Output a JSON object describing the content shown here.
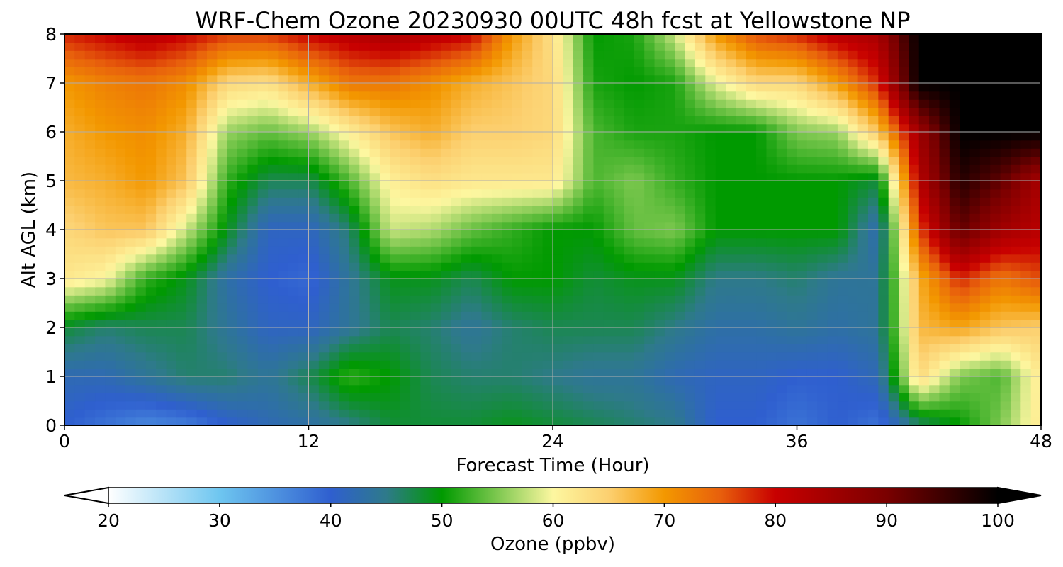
{
  "chart_data": {
    "type": "heatmap",
    "title": "WRF-Chem Ozone  20230930 00UTC 48h fcst at Yellowstone NP",
    "xlabel": "Forecast Time (Hour)",
    "ylabel": "Alt AGL (km)",
    "xlim": [
      0,
      48
    ],
    "ylim": [
      0,
      8
    ],
    "x_ticks": [
      0,
      12,
      24,
      36,
      48
    ],
    "x_tick_labels": [
      "0",
      "12",
      "24",
      "36",
      "48"
    ],
    "y_ticks": [
      0,
      1,
      2,
      3,
      4,
      5,
      6,
      7,
      8
    ],
    "y_tick_labels": [
      "0",
      "1",
      "2",
      "3",
      "4",
      "5",
      "6",
      "7",
      "8"
    ],
    "grid": true,
    "grid_x": [
      0,
      12,
      24,
      36,
      48
    ],
    "grid_y": [
      0,
      1,
      2,
      3,
      4,
      5,
      6,
      7,
      8
    ],
    "x": [
      0,
      2,
      4,
      6,
      8,
      10,
      12,
      14,
      16,
      18,
      20,
      22,
      24,
      26,
      28,
      30,
      32,
      34,
      36,
      38,
      40,
      42,
      44,
      46,
      48
    ],
    "y": [
      0,
      1,
      2,
      3,
      4,
      5,
      6,
      7,
      8
    ],
    "values": [
      [
        40,
        38,
        36,
        37,
        40,
        42,
        43,
        45,
        48,
        48,
        48,
        49,
        48,
        47,
        46,
        45,
        40,
        40,
        38,
        40,
        38,
        46,
        50,
        55,
        62
      ],
      [
        42,
        42,
        44,
        46,
        46,
        44,
        47,
        52,
        50,
        47,
        46,
        46,
        45,
        44,
        44,
        42,
        41,
        41,
        40,
        40,
        42,
        64,
        55,
        53,
        62
      ],
      [
        48,
        46,
        47,
        47,
        44,
        41,
        41,
        44,
        47,
        46,
        44,
        46,
        47,
        47,
        47,
        45,
        43,
        43,
        44,
        43,
        44,
        67,
        69,
        66,
        65
      ],
      [
        62,
        60,
        52,
        49,
        43,
        40,
        39,
        44,
        49,
        49,
        47,
        50,
        50,
        48,
        49,
        49,
        45,
        45,
        46,
        44,
        44,
        68,
        78,
        73,
        76
      ],
      [
        64,
        66,
        66,
        58,
        49,
        41,
        41,
        46,
        58,
        57,
        54,
        52,
        50,
        50,
        54,
        55,
        50,
        50,
        50,
        50,
        42,
        76,
        92,
        85,
        82
      ],
      [
        67,
        68,
        70,
        66,
        52,
        47,
        47,
        53,
        61,
        63,
        62,
        62,
        62,
        53,
        55,
        52,
        50,
        50,
        50,
        50,
        48,
        82,
        97,
        92,
        84
      ],
      [
        68,
        70,
        71,
        68,
        56,
        54,
        56,
        61,
        66,
        68,
        65,
        65,
        64,
        53,
        51,
        51,
        50,
        50,
        55,
        56,
        66,
        85,
        100,
        100,
        100
      ],
      [
        70,
        72,
        73,
        71,
        64,
        63,
        68,
        73,
        73,
        71,
        68,
        66,
        64,
        51,
        50,
        51,
        59,
        64,
        64,
        70,
        78,
        100,
        100,
        100,
        100
      ],
      [
        78,
        80,
        82,
        80,
        77,
        77,
        80,
        82,
        84,
        82,
        80,
        70,
        63,
        50,
        51,
        58,
        70,
        76,
        78,
        82,
        84,
        100,
        100,
        100,
        100
      ]
    ],
    "colorbar": {
      "label": "Ozone  (ppbv)",
      "min": 20,
      "max": 100,
      "ticks": [
        20,
        30,
        40,
        50,
        60,
        70,
        80,
        90,
        100
      ],
      "tick_labels": [
        "20",
        "30",
        "40",
        "50",
        "60",
        "70",
        "80",
        "90",
        "100"
      ],
      "extend": "both",
      "extend_low_color": "#ffffff",
      "extend_high_color": "#000000",
      "color_stops": [
        {
          "value": 20,
          "color": "#ffffff"
        },
        {
          "value": 30,
          "color": "#6ec6f0"
        },
        {
          "value": 40,
          "color": "#2f5fcf"
        },
        {
          "value": 45,
          "color": "#2e7a8a"
        },
        {
          "value": 50,
          "color": "#009a00"
        },
        {
          "value": 55,
          "color": "#7ec850"
        },
        {
          "value": 60,
          "color": "#fdf7a0"
        },
        {
          "value": 65,
          "color": "#fcd070"
        },
        {
          "value": 70,
          "color": "#f39800"
        },
        {
          "value": 75,
          "color": "#e8600c"
        },
        {
          "value": 80,
          "color": "#c80000"
        },
        {
          "value": 90,
          "color": "#7a0000"
        },
        {
          "value": 100,
          "color": "#000000"
        }
      ]
    }
  }
}
